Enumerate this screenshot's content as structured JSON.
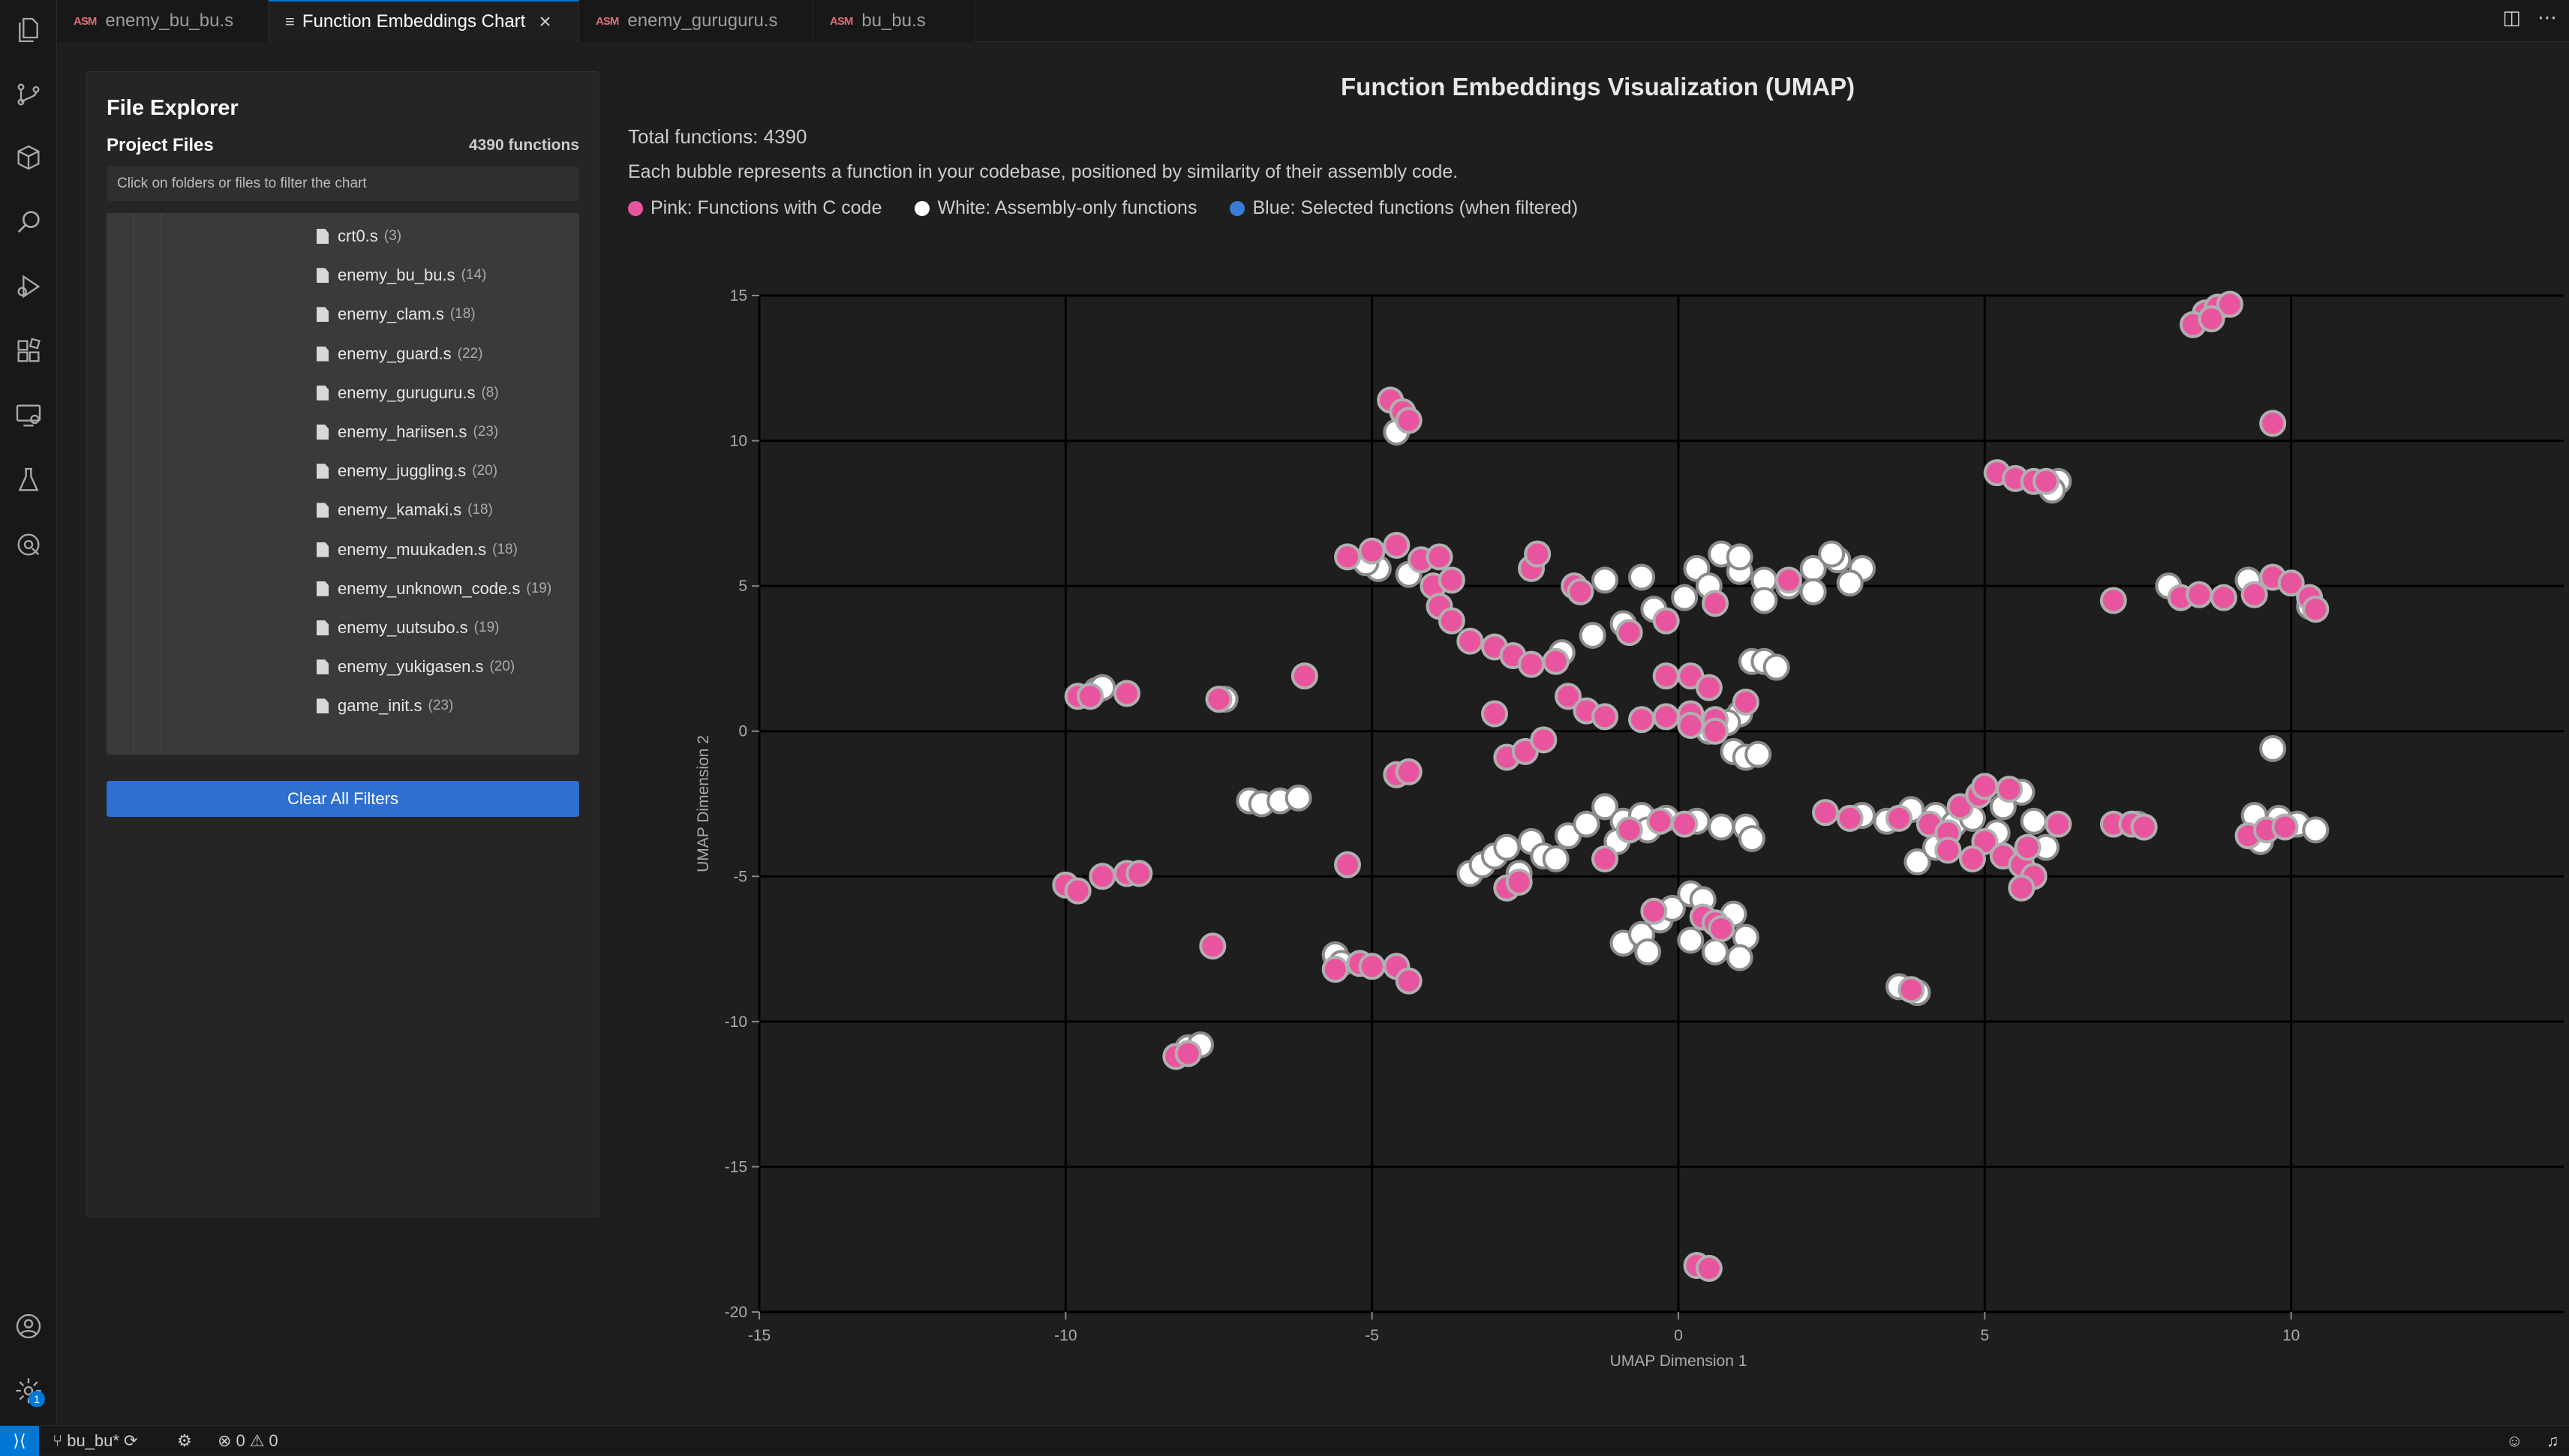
{
  "tabs": [
    {
      "label": "enemy_bu_bu.s",
      "kind": "asm",
      "active": false
    },
    {
      "label": "Function Embeddings Chart",
      "kind": "doc",
      "active": true
    },
    {
      "label": "enemy_guruguru.s",
      "kind": "asm",
      "active": false
    },
    {
      "label": "bu_bu.s",
      "kind": "asm",
      "active": false
    }
  ],
  "activity_icons": [
    "files-icon",
    "source-control-icon",
    "package-icon",
    "search-icon",
    "run-debug-icon",
    "extensions-icon",
    "remote-explorer-icon",
    "testing-icon",
    "gitlens-icon"
  ],
  "explorer": {
    "title": "File Explorer",
    "section_label": "Project Files",
    "function_count": "4390 functions",
    "hint": "Click on folders or files to filter the chart",
    "files": [
      {
        "name": "crt0.s",
        "count": "(3)"
      },
      {
        "name": "enemy_bu_bu.s",
        "count": "(14)"
      },
      {
        "name": "enemy_clam.s",
        "count": "(18)"
      },
      {
        "name": "enemy_guard.s",
        "count": "(22)"
      },
      {
        "name": "enemy_guruguru.s",
        "count": "(8)"
      },
      {
        "name": "enemy_hariisen.s",
        "count": "(23)"
      },
      {
        "name": "enemy_juggling.s",
        "count": "(20)"
      },
      {
        "name": "enemy_kamaki.s",
        "count": "(18)"
      },
      {
        "name": "enemy_muukaden.s",
        "count": "(18)"
      },
      {
        "name": "enemy_unknown_code.s",
        "count": "(19)"
      },
      {
        "name": "enemy_uutsubo.s",
        "count": "(19)"
      },
      {
        "name": "enemy_yukigasen.s",
        "count": "(20)"
      },
      {
        "name": "game_init.s",
        "count": "(23)"
      }
    ],
    "clear_button": "Clear All Filters"
  },
  "chart_header": {
    "title": "Function Embeddings Visualization (UMAP)",
    "total": "Total functions: 4390",
    "description": "Each bubble represents a function in your codebase, positioned by similarity of their assembly code.",
    "legend": [
      {
        "label": "Pink: Functions with C code",
        "color": "#e8559e"
      },
      {
        "label": "White: Assembly-only functions",
        "color": "#ffffff"
      },
      {
        "label": "Blue: Selected functions (when filtered)",
        "color": "#3a7bd5"
      }
    ]
  },
  "chart_data": {
    "type": "scatter",
    "xlabel": "UMAP Dimension 1",
    "ylabel": "UMAP Dimension 2",
    "xlim": [
      -15,
      15
    ],
    "ylim": [
      -20,
      15
    ],
    "xticks": [
      -15,
      -10,
      -5,
      0,
      5,
      10,
      15
    ],
    "yticks": [
      15,
      10,
      5,
      0,
      -5,
      -10,
      -15,
      -20
    ],
    "grid": true,
    "colors": {
      "pink": "#e8559e",
      "white": "#ffffff",
      "pink_stroke": "#b0b0b0",
      "white_stroke": "#8a8a8a"
    },
    "series": [
      {
        "name": "Pink: Functions with C code",
        "points": [
          [
            8.6,
            14.4
          ],
          [
            8.8,
            14.6
          ],
          [
            9.0,
            14.7
          ],
          [
            8.4,
            14.0
          ],
          [
            8.7,
            14.2
          ],
          [
            9.7,
            10.6
          ],
          [
            5.2,
            8.9
          ],
          [
            5.5,
            8.7
          ],
          [
            5.8,
            8.6
          ],
          [
            6.0,
            8.6
          ],
          [
            7.1,
            4.5
          ],
          [
            8.2,
            4.6
          ],
          [
            8.5,
            4.7
          ],
          [
            8.9,
            4.6
          ],
          [
            9.4,
            4.7
          ],
          [
            9.7,
            5.3
          ],
          [
            10.0,
            5.1
          ],
          [
            10.3,
            4.6
          ],
          [
            10.4,
            4.2
          ],
          [
            -4.7,
            11.4
          ],
          [
            -4.5,
            11.0
          ],
          [
            -4.4,
            10.7
          ],
          [
            -5.4,
            6.0
          ],
          [
            -5.0,
            6.2
          ],
          [
            -4.6,
            6.4
          ],
          [
            -4.2,
            5.9
          ],
          [
            -4.0,
            5.0
          ],
          [
            -3.9,
            4.3
          ],
          [
            -3.7,
            3.8
          ],
          [
            -3.9,
            6.0
          ],
          [
            -3.7,
            5.2
          ],
          [
            -2.4,
            5.6
          ],
          [
            -2.3,
            6.1
          ],
          [
            -1.7,
            5.0
          ],
          [
            -1.6,
            4.8
          ],
          [
            -3.4,
            3.1
          ],
          [
            -3.0,
            2.9
          ],
          [
            -2.7,
            2.6
          ],
          [
            -2.4,
            2.3
          ],
          [
            -2.0,
            2.4
          ],
          [
            -1.8,
            1.2
          ],
          [
            -1.5,
            0.7
          ],
          [
            -1.2,
            0.5
          ],
          [
            -0.6,
            0.4
          ],
          [
            -0.2,
            0.5
          ],
          [
            0.2,
            0.6
          ],
          [
            0.6,
            0.4
          ],
          [
            1.1,
            1.0
          ],
          [
            1.8,
            5.2
          ],
          [
            -0.8,
            3.4
          ],
          [
            -0.2,
            3.8
          ],
          [
            0.6,
            4.4
          ],
          [
            -2.8,
            -0.9
          ],
          [
            -2.5,
            -0.7
          ],
          [
            -2.2,
            -0.3
          ],
          [
            -3.0,
            0.6
          ],
          [
            -0.2,
            1.9
          ],
          [
            0.2,
            1.9
          ],
          [
            0.5,
            1.5
          ],
          [
            0.2,
            0.2
          ],
          [
            0.6,
            0.0
          ],
          [
            -9.8,
            1.2
          ],
          [
            -9.6,
            1.2
          ],
          [
            -9.0,
            1.3
          ],
          [
            -7.5,
            1.1
          ],
          [
            -6.1,
            1.9
          ],
          [
            -4.6,
            -1.5
          ],
          [
            -4.4,
            -1.4
          ],
          [
            -10.0,
            -5.3
          ],
          [
            -9.8,
            -5.5
          ],
          [
            -9.4,
            -5.0
          ],
          [
            -9.0,
            -4.9
          ],
          [
            -8.8,
            -4.9
          ],
          [
            -5.4,
            -4.6
          ],
          [
            -7.6,
            -7.4
          ],
          [
            -5.6,
            -8.2
          ],
          [
            -5.2,
            -8.0
          ],
          [
            -5.0,
            -8.1
          ],
          [
            -4.6,
            -8.1
          ],
          [
            -4.4,
            -8.6
          ],
          [
            -8.2,
            -11.2
          ],
          [
            -8.0,
            -11.1
          ],
          [
            -2.8,
            -5.4
          ],
          [
            -2.6,
            -5.2
          ],
          [
            -1.2,
            -4.4
          ],
          [
            -0.8,
            -3.4
          ],
          [
            -0.3,
            -3.1
          ],
          [
            0.1,
            -3.2
          ],
          [
            -0.4,
            -6.2
          ],
          [
            0.4,
            -6.4
          ],
          [
            0.6,
            -6.6
          ],
          [
            0.7,
            -6.8
          ],
          [
            2.4,
            -2.8
          ],
          [
            2.8,
            -3.0
          ],
          [
            3.6,
            -3.0
          ],
          [
            4.1,
            -3.2
          ],
          [
            4.4,
            -3.5
          ],
          [
            4.6,
            -2.6
          ],
          [
            4.9,
            -2.2
          ],
          [
            5.0,
            -1.9
          ],
          [
            5.4,
            -2.0
          ],
          [
            5.0,
            -3.8
          ],
          [
            5.3,
            -4.3
          ],
          [
            5.6,
            -4.6
          ],
          [
            5.8,
            -5.0
          ],
          [
            5.6,
            -5.4
          ],
          [
            5.7,
            -4.0
          ],
          [
            4.4,
            -4.1
          ],
          [
            4.8,
            -4.4
          ],
          [
            6.2,
            -3.2
          ],
          [
            7.1,
            -3.2
          ],
          [
            7.4,
            -3.2
          ],
          [
            7.6,
            -3.3
          ],
          [
            9.3,
            -3.6
          ],
          [
            9.6,
            -3.4
          ],
          [
            9.9,
            -3.3
          ],
          [
            3.8,
            -8.9
          ],
          [
            0.3,
            -18.4
          ],
          [
            0.5,
            -18.5
          ]
        ]
      },
      {
        "name": "White: Assembly-only functions",
        "points": [
          [
            6.2,
            8.6
          ],
          [
            6.1,
            8.3
          ],
          [
            8.0,
            5.0
          ],
          [
            9.3,
            5.2
          ],
          [
            10.3,
            4.3
          ],
          [
            -4.6,
            10.3
          ],
          [
            -4.9,
            5.6
          ],
          [
            -4.4,
            5.4
          ],
          [
            -5.1,
            5.8
          ],
          [
            -1.2,
            5.2
          ],
          [
            -0.6,
            5.3
          ],
          [
            0.3,
            5.6
          ],
          [
            0.7,
            6.1
          ],
          [
            1.0,
            5.5
          ],
          [
            1.4,
            5.2
          ],
          [
            1.8,
            5.0
          ],
          [
            2.2,
            5.6
          ],
          [
            2.6,
            5.9
          ],
          [
            3.0,
            5.6
          ],
          [
            2.8,
            5.1
          ],
          [
            2.2,
            4.8
          ],
          [
            1.4,
            4.5
          ],
          [
            1.0,
            6.0
          ],
          [
            0.5,
            5.0
          ],
          [
            2.5,
            6.1
          ],
          [
            -1.4,
            3.3
          ],
          [
            -0.9,
            3.7
          ],
          [
            -0.4,
            4.2
          ],
          [
            0.1,
            4.6
          ],
          [
            -1.9,
            2.7
          ],
          [
            1.2,
            2.4
          ],
          [
            1.4,
            2.4
          ],
          [
            1.6,
            2.2
          ],
          [
            -9.5,
            1.4
          ],
          [
            -9.4,
            1.5
          ],
          [
            -7.4,
            1.1
          ],
          [
            1.0,
            0.6
          ],
          [
            0.8,
            0.3
          ],
          [
            0.5,
            0.0
          ],
          [
            0.9,
            -0.7
          ],
          [
            1.1,
            -0.9
          ],
          [
            1.3,
            -0.8
          ],
          [
            -7.0,
            -2.4
          ],
          [
            -6.8,
            -2.5
          ],
          [
            -6.5,
            -2.4
          ],
          [
            -6.2,
            -2.3
          ],
          [
            -5.6,
            -7.7
          ],
          [
            -5.5,
            -8.0
          ],
          [
            -8.0,
            -10.9
          ],
          [
            -7.8,
            -10.8
          ],
          [
            -3.4,
            -4.9
          ],
          [
            -3.2,
            -4.6
          ],
          [
            -3.0,
            -4.3
          ],
          [
            -2.8,
            -4.0
          ],
          [
            -2.4,
            -3.8
          ],
          [
            -2.2,
            -4.3
          ],
          [
            -1.8,
            -3.6
          ],
          [
            -1.5,
            -3.2
          ],
          [
            -1.2,
            -2.6
          ],
          [
            -0.9,
            -3.1
          ],
          [
            -0.6,
            -2.9
          ],
          [
            -0.2,
            -3.0
          ],
          [
            0.3,
            -3.1
          ],
          [
            0.7,
            -3.3
          ],
          [
            1.1,
            -3.3
          ],
          [
            -2.6,
            -4.9
          ],
          [
            -2.0,
            -4.4
          ],
          [
            -1.0,
            -3.8
          ],
          [
            -0.5,
            -3.4
          ],
          [
            1.2,
            -3.7
          ],
          [
            -0.9,
            -7.3
          ],
          [
            -0.6,
            -7.0
          ],
          [
            -0.3,
            -6.5
          ],
          [
            -0.1,
            -6.1
          ],
          [
            0.2,
            -5.6
          ],
          [
            0.4,
            -5.8
          ],
          [
            0.9,
            -6.3
          ],
          [
            1.1,
            -7.1
          ],
          [
            1.0,
            -7.8
          ],
          [
            0.6,
            -7.6
          ],
          [
            0.2,
            -7.2
          ],
          [
            -0.5,
            -7.6
          ],
          [
            3.0,
            -2.9
          ],
          [
            3.4,
            -3.1
          ],
          [
            3.8,
            -2.7
          ],
          [
            4.2,
            -2.9
          ],
          [
            4.5,
            -3.2
          ],
          [
            4.8,
            -3.0
          ],
          [
            5.3,
            -2.6
          ],
          [
            5.6,
            -2.1
          ],
          [
            5.8,
            -3.1
          ],
          [
            6.0,
            -4.0
          ],
          [
            5.2,
            -3.5
          ],
          [
            3.9,
            -4.5
          ],
          [
            4.2,
            -4.0
          ],
          [
            7.6,
            -3.3
          ],
          [
            7.5,
            -3.2
          ],
          [
            9.4,
            -2.9
          ],
          [
            9.8,
            -3.0
          ],
          [
            10.1,
            -3.2
          ],
          [
            10.4,
            -3.4
          ],
          [
            9.5,
            -3.8
          ],
          [
            9.7,
            -0.6
          ],
          [
            3.6,
            -8.8
          ],
          [
            3.9,
            -9.0
          ]
        ]
      }
    ]
  },
  "status": {
    "remote": "><",
    "branch": "bu_bu*",
    "errors": "0",
    "warnings": "0"
  }
}
